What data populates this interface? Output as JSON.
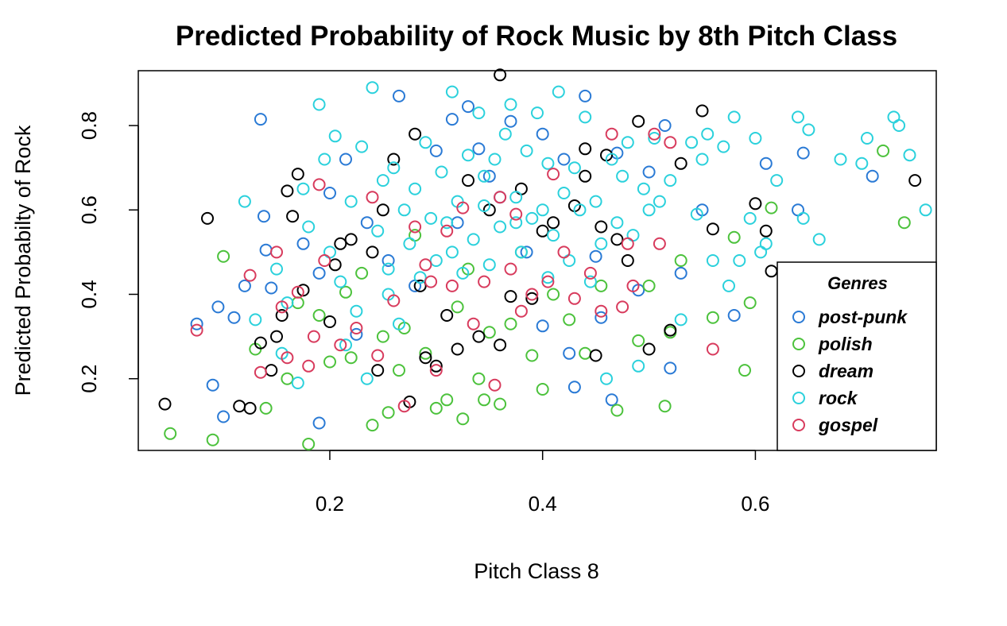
{
  "chart_data": {
    "type": "scatter",
    "title": "Predicted Probability of Rock Music by 8th Pitch Class",
    "xlabel": "Pitch Class 8",
    "ylabel": "Predicted Probabilty of Rock",
    "xlim": [
      0.02,
      0.77
    ],
    "ylim": [
      0.03,
      0.93
    ],
    "x_ticks": [
      0.2,
      0.4,
      0.6
    ],
    "x_tick_labels": [
      "0.2",
      "0.4",
      "0.6"
    ],
    "y_ticks": [
      0.2,
      0.4,
      0.6,
      0.8
    ],
    "y_tick_labels": [
      "0.2",
      "0.4",
      "0.6",
      "0.8"
    ],
    "grid": false,
    "marker": "open-circle",
    "legend": {
      "title": "Genres",
      "placement": "bottom-right",
      "entries": [
        "post-punk",
        "polish",
        "dream",
        "rock",
        "gospel"
      ]
    },
    "series": [
      {
        "name": "post-punk",
        "color": "#2a7ad5",
        "points": [
          [
            0.135,
            0.815
          ],
          [
            0.075,
            0.33
          ],
          [
            0.09,
            0.185
          ],
          [
            0.095,
            0.37
          ],
          [
            0.1,
            0.11
          ],
          [
            0.11,
            0.345
          ],
          [
            0.12,
            0.42
          ],
          [
            0.138,
            0.585
          ],
          [
            0.14,
            0.505
          ],
          [
            0.145,
            0.415
          ],
          [
            0.175,
            0.52
          ],
          [
            0.19,
            0.095
          ],
          [
            0.19,
            0.45
          ],
          [
            0.2,
            0.64
          ],
          [
            0.215,
            0.72
          ],
          [
            0.225,
            0.305
          ],
          [
            0.235,
            0.57
          ],
          [
            0.255,
            0.48
          ],
          [
            0.265,
            0.87
          ],
          [
            0.3,
            0.74
          ],
          [
            0.315,
            0.815
          ],
          [
            0.33,
            0.845
          ],
          [
            0.34,
            0.745
          ],
          [
            0.35,
            0.68
          ],
          [
            0.37,
            0.81
          ],
          [
            0.385,
            0.5
          ],
          [
            0.4,
            0.325
          ],
          [
            0.4,
            0.78
          ],
          [
            0.42,
            0.72
          ],
          [
            0.43,
            0.18
          ],
          [
            0.44,
            0.87
          ],
          [
            0.45,
            0.49
          ],
          [
            0.455,
            0.345
          ],
          [
            0.465,
            0.15
          ],
          [
            0.47,
            0.735
          ],
          [
            0.49,
            0.41
          ],
          [
            0.5,
            0.69
          ],
          [
            0.515,
            0.8
          ],
          [
            0.52,
            0.225
          ],
          [
            0.53,
            0.45
          ],
          [
            0.55,
            0.6
          ],
          [
            0.58,
            0.35
          ],
          [
            0.61,
            0.71
          ],
          [
            0.64,
            0.6
          ],
          [
            0.645,
            0.735
          ],
          [
            0.71,
            0.68
          ],
          [
            0.425,
            0.26
          ],
          [
            0.36,
            0.63
          ],
          [
            0.28,
            0.42
          ],
          [
            0.32,
            0.57
          ]
        ]
      },
      {
        "name": "polish",
        "color": "#4cc23c",
        "points": [
          [
            0.05,
            0.07
          ],
          [
            0.09,
            0.055
          ],
          [
            0.1,
            0.49
          ],
          [
            0.13,
            0.27
          ],
          [
            0.14,
            0.13
          ],
          [
            0.16,
            0.2
          ],
          [
            0.18,
            0.045
          ],
          [
            0.19,
            0.35
          ],
          [
            0.2,
            0.24
          ],
          [
            0.215,
            0.405
          ],
          [
            0.22,
            0.25
          ],
          [
            0.24,
            0.09
          ],
          [
            0.25,
            0.3
          ],
          [
            0.255,
            0.12
          ],
          [
            0.265,
            0.22
          ],
          [
            0.28,
            0.54
          ],
          [
            0.29,
            0.26
          ],
          [
            0.3,
            0.13
          ],
          [
            0.31,
            0.15
          ],
          [
            0.32,
            0.37
          ],
          [
            0.325,
            0.105
          ],
          [
            0.34,
            0.2
          ],
          [
            0.345,
            0.15
          ],
          [
            0.35,
            0.31
          ],
          [
            0.36,
            0.14
          ],
          [
            0.37,
            0.33
          ],
          [
            0.38,
            0.5
          ],
          [
            0.39,
            0.255
          ],
          [
            0.4,
            0.175
          ],
          [
            0.41,
            0.4
          ],
          [
            0.425,
            0.34
          ],
          [
            0.44,
            0.26
          ],
          [
            0.455,
            0.42
          ],
          [
            0.47,
            0.125
          ],
          [
            0.49,
            0.29
          ],
          [
            0.5,
            0.42
          ],
          [
            0.515,
            0.135
          ],
          [
            0.52,
            0.31
          ],
          [
            0.53,
            0.48
          ],
          [
            0.56,
            0.345
          ],
          [
            0.58,
            0.535
          ],
          [
            0.59,
            0.22
          ],
          [
            0.595,
            0.38
          ],
          [
            0.615,
            0.605
          ],
          [
            0.72,
            0.74
          ],
          [
            0.74,
            0.57
          ],
          [
            0.27,
            0.32
          ],
          [
            0.33,
            0.46
          ],
          [
            0.23,
            0.45
          ],
          [
            0.17,
            0.38
          ]
        ]
      },
      {
        "name": "dream",
        "color": "#000000",
        "points": [
          [
            0.045,
            0.14
          ],
          [
            0.085,
            0.58
          ],
          [
            0.115,
            0.135
          ],
          [
            0.125,
            0.13
          ],
          [
            0.135,
            0.285
          ],
          [
            0.145,
            0.22
          ],
          [
            0.15,
            0.3
          ],
          [
            0.155,
            0.35
          ],
          [
            0.16,
            0.645
          ],
          [
            0.165,
            0.585
          ],
          [
            0.17,
            0.685
          ],
          [
            0.175,
            0.41
          ],
          [
            0.2,
            0.335
          ],
          [
            0.205,
            0.47
          ],
          [
            0.21,
            0.52
          ],
          [
            0.22,
            0.53
          ],
          [
            0.24,
            0.5
          ],
          [
            0.245,
            0.22
          ],
          [
            0.25,
            0.6
          ],
          [
            0.26,
            0.72
          ],
          [
            0.275,
            0.145
          ],
          [
            0.28,
            0.78
          ],
          [
            0.285,
            0.42
          ],
          [
            0.29,
            0.25
          ],
          [
            0.3,
            0.23
          ],
          [
            0.31,
            0.35
          ],
          [
            0.32,
            0.27
          ],
          [
            0.33,
            0.67
          ],
          [
            0.34,
            0.3
          ],
          [
            0.35,
            0.6
          ],
          [
            0.36,
            0.92
          ],
          [
            0.37,
            0.395
          ],
          [
            0.38,
            0.65
          ],
          [
            0.39,
            0.39
          ],
          [
            0.4,
            0.55
          ],
          [
            0.41,
            0.57
          ],
          [
            0.43,
            0.61
          ],
          [
            0.44,
            0.745
          ],
          [
            0.45,
            0.255
          ],
          [
            0.455,
            0.56
          ],
          [
            0.46,
            0.73
          ],
          [
            0.47,
            0.53
          ],
          [
            0.48,
            0.48
          ],
          [
            0.49,
            0.81
          ],
          [
            0.5,
            0.27
          ],
          [
            0.52,
            0.315
          ],
          [
            0.53,
            0.71
          ],
          [
            0.55,
            0.835
          ],
          [
            0.56,
            0.555
          ],
          [
            0.6,
            0.615
          ],
          [
            0.61,
            0.55
          ],
          [
            0.615,
            0.455
          ],
          [
            0.75,
            0.67
          ],
          [
            0.36,
            0.28
          ],
          [
            0.44,
            0.68
          ]
        ]
      },
      {
        "name": "rock",
        "color": "#2bd1dc",
        "points": [
          [
            0.12,
            0.62
          ],
          [
            0.13,
            0.34
          ],
          [
            0.15,
            0.46
          ],
          [
            0.155,
            0.26
          ],
          [
            0.16,
            0.38
          ],
          [
            0.17,
            0.19
          ],
          [
            0.175,
            0.65
          ],
          [
            0.18,
            0.56
          ],
          [
            0.19,
            0.85
          ],
          [
            0.195,
            0.72
          ],
          [
            0.2,
            0.5
          ],
          [
            0.205,
            0.775
          ],
          [
            0.21,
            0.43
          ],
          [
            0.215,
            0.28
          ],
          [
            0.22,
            0.62
          ],
          [
            0.225,
            0.36
          ],
          [
            0.23,
            0.75
          ],
          [
            0.235,
            0.2
          ],
          [
            0.24,
            0.89
          ],
          [
            0.245,
            0.55
          ],
          [
            0.25,
            0.67
          ],
          [
            0.255,
            0.4
          ],
          [
            0.26,
            0.7
          ],
          [
            0.265,
            0.33
          ],
          [
            0.27,
            0.6
          ],
          [
            0.275,
            0.52
          ],
          [
            0.28,
            0.65
          ],
          [
            0.285,
            0.44
          ],
          [
            0.29,
            0.76
          ],
          [
            0.295,
            0.58
          ],
          [
            0.3,
            0.48
          ],
          [
            0.305,
            0.69
          ],
          [
            0.31,
            0.57
          ],
          [
            0.315,
            0.88
          ],
          [
            0.32,
            0.62
          ],
          [
            0.325,
            0.45
          ],
          [
            0.33,
            0.73
          ],
          [
            0.335,
            0.53
          ],
          [
            0.34,
            0.83
          ],
          [
            0.345,
            0.61
          ],
          [
            0.35,
            0.47
          ],
          [
            0.355,
            0.72
          ],
          [
            0.36,
            0.56
          ],
          [
            0.365,
            0.78
          ],
          [
            0.37,
            0.85
          ],
          [
            0.375,
            0.63
          ],
          [
            0.38,
            0.5
          ],
          [
            0.385,
            0.74
          ],
          [
            0.39,
            0.58
          ],
          [
            0.395,
            0.83
          ],
          [
            0.4,
            0.6
          ],
          [
            0.405,
            0.71
          ],
          [
            0.41,
            0.54
          ],
          [
            0.415,
            0.88
          ],
          [
            0.42,
            0.64
          ],
          [
            0.425,
            0.48
          ],
          [
            0.43,
            0.7
          ],
          [
            0.435,
            0.6
          ],
          [
            0.44,
            0.82
          ],
          [
            0.445,
            0.43
          ],
          [
            0.45,
            0.62
          ],
          [
            0.455,
            0.52
          ],
          [
            0.46,
            0.2
          ],
          [
            0.465,
            0.72
          ],
          [
            0.47,
            0.57
          ],
          [
            0.475,
            0.68
          ],
          [
            0.48,
            0.76
          ],
          [
            0.485,
            0.54
          ],
          [
            0.49,
            0.23
          ],
          [
            0.495,
            0.65
          ],
          [
            0.5,
            0.6
          ],
          [
            0.505,
            0.77
          ],
          [
            0.51,
            0.62
          ],
          [
            0.52,
            0.67
          ],
          [
            0.53,
            0.34
          ],
          [
            0.54,
            0.76
          ],
          [
            0.545,
            0.59
          ],
          [
            0.55,
            0.72
          ],
          [
            0.555,
            0.78
          ],
          [
            0.56,
            0.48
          ],
          [
            0.57,
            0.75
          ],
          [
            0.575,
            0.42
          ],
          [
            0.58,
            0.82
          ],
          [
            0.585,
            0.48
          ],
          [
            0.595,
            0.58
          ],
          [
            0.6,
            0.77
          ],
          [
            0.605,
            0.5
          ],
          [
            0.61,
            0.52
          ],
          [
            0.62,
            0.67
          ],
          [
            0.64,
            0.82
          ],
          [
            0.645,
            0.58
          ],
          [
            0.65,
            0.79
          ],
          [
            0.66,
            0.53
          ],
          [
            0.68,
            0.72
          ],
          [
            0.7,
            0.71
          ],
          [
            0.705,
            0.77
          ],
          [
            0.73,
            0.82
          ],
          [
            0.735,
            0.8
          ],
          [
            0.745,
            0.73
          ],
          [
            0.76,
            0.6
          ],
          [
            0.255,
            0.46
          ],
          [
            0.345,
            0.68
          ],
          [
            0.405,
            0.44
          ],
          [
            0.315,
            0.5
          ],
          [
            0.375,
            0.57
          ]
        ]
      },
      {
        "name": "gospel",
        "color": "#d83b5d",
        "points": [
          [
            0.075,
            0.315
          ],
          [
            0.125,
            0.445
          ],
          [
            0.135,
            0.215
          ],
          [
            0.15,
            0.5
          ],
          [
            0.155,
            0.37
          ],
          [
            0.16,
            0.25
          ],
          [
            0.17,
            0.405
          ],
          [
            0.18,
            0.23
          ],
          [
            0.185,
            0.3
          ],
          [
            0.19,
            0.66
          ],
          [
            0.195,
            0.48
          ],
          [
            0.21,
            0.28
          ],
          [
            0.225,
            0.32
          ],
          [
            0.24,
            0.63
          ],
          [
            0.245,
            0.255
          ],
          [
            0.26,
            0.385
          ],
          [
            0.27,
            0.135
          ],
          [
            0.28,
            0.56
          ],
          [
            0.29,
            0.47
          ],
          [
            0.3,
            0.22
          ],
          [
            0.31,
            0.55
          ],
          [
            0.315,
            0.42
          ],
          [
            0.325,
            0.605
          ],
          [
            0.335,
            0.33
          ],
          [
            0.345,
            0.43
          ],
          [
            0.355,
            0.185
          ],
          [
            0.37,
            0.46
          ],
          [
            0.375,
            0.59
          ],
          [
            0.38,
            0.36
          ],
          [
            0.39,
            0.4
          ],
          [
            0.405,
            0.43
          ],
          [
            0.41,
            0.685
          ],
          [
            0.42,
            0.5
          ],
          [
            0.43,
            0.39
          ],
          [
            0.445,
            0.45
          ],
          [
            0.455,
            0.36
          ],
          [
            0.465,
            0.78
          ],
          [
            0.475,
            0.37
          ],
          [
            0.48,
            0.52
          ],
          [
            0.485,
            0.42
          ],
          [
            0.505,
            0.78
          ],
          [
            0.51,
            0.52
          ],
          [
            0.52,
            0.76
          ],
          [
            0.56,
            0.27
          ],
          [
            0.36,
            0.63
          ],
          [
            0.295,
            0.43
          ]
        ]
      }
    ]
  }
}
